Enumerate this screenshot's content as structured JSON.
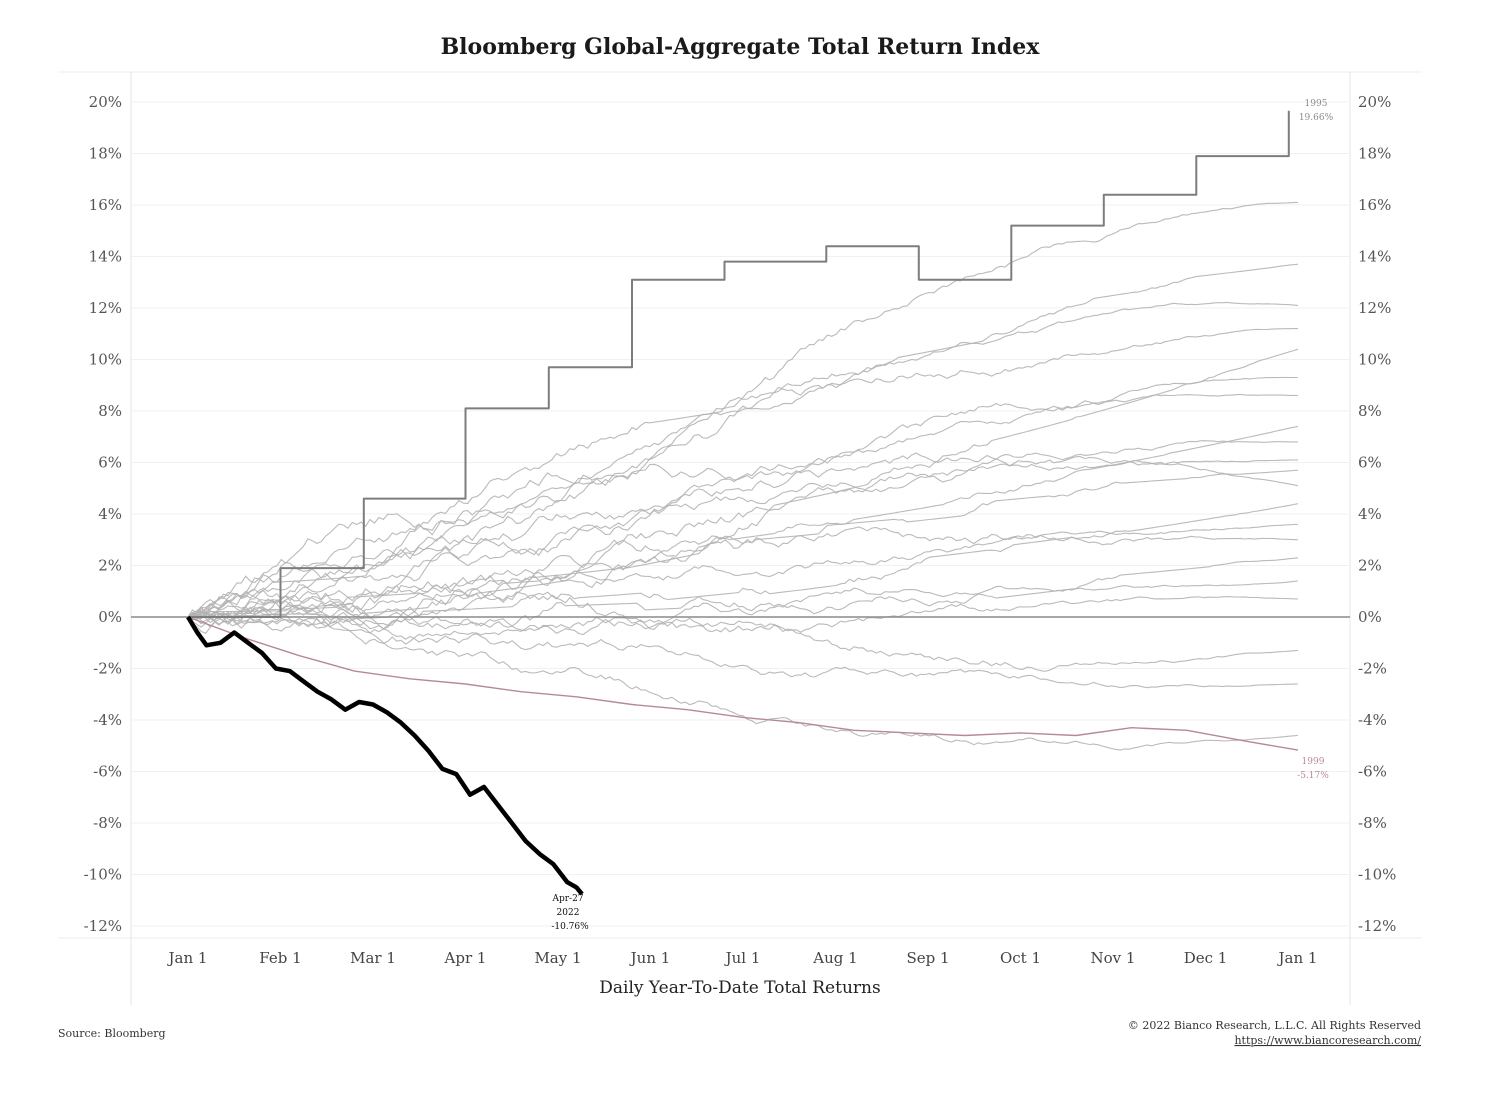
{
  "chart_data": {
    "type": "line",
    "title": "Bloomberg Global-Aggregate Total Return Index",
    "xlabel": "Daily Year-To-Date Total Returns",
    "ylabel": "",
    "ylim": [
      -12,
      20
    ],
    "y_ticks": [
      "20%",
      "18%",
      "16%",
      "14%",
      "12%",
      "10%",
      "8%",
      "6%",
      "4%",
      "2%",
      "0%",
      "-2%",
      "-4%",
      "-6%",
      "-8%",
      "-10%",
      "-12%"
    ],
    "x_ticks": [
      "Jan 1",
      "Feb 1",
      "Mar 1",
      "Apr 1",
      "May 1",
      "Jun 1",
      "Jul 1",
      "Aug 1",
      "Sep 1",
      "Oct 1",
      "Nov 1",
      "Dec 1",
      "Jan 1"
    ],
    "grid": true,
    "source": "Source: Bloomberg",
    "copyright": "© 2022 Bianco Research, L.L.C. All Rights Reserved",
    "url": "https://www.biancoresearch.com/",
    "highlight_series": {
      "name": "2022",
      "color": "#000000",
      "points": [
        [
          0,
          0
        ],
        [
          0.1,
          -0.6
        ],
        [
          0.2,
          -1.1
        ],
        [
          0.35,
          -1.0
        ],
        [
          0.5,
          -0.6
        ],
        [
          0.65,
          -1.0
        ],
        [
          0.8,
          -1.4
        ],
        [
          0.95,
          -2.0
        ],
        [
          1.1,
          -2.1
        ],
        [
          1.25,
          -2.5
        ],
        [
          1.4,
          -2.9
        ],
        [
          1.55,
          -3.2
        ],
        [
          1.7,
          -3.6
        ],
        [
          1.85,
          -3.3
        ],
        [
          2.0,
          -3.4
        ],
        [
          2.15,
          -3.7
        ],
        [
          2.3,
          -4.1
        ],
        [
          2.45,
          -4.6
        ],
        [
          2.6,
          -5.2
        ],
        [
          2.75,
          -5.9
        ],
        [
          2.9,
          -6.1
        ],
        [
          3.05,
          -6.9
        ],
        [
          3.2,
          -6.6
        ],
        [
          3.35,
          -7.3
        ],
        [
          3.5,
          -8.0
        ],
        [
          3.65,
          -8.7
        ],
        [
          3.8,
          -9.2
        ],
        [
          3.95,
          -9.6
        ],
        [
          4.1,
          -10.3
        ],
        [
          4.2,
          -10.5
        ],
        [
          4.26,
          -10.76
        ]
      ]
    },
    "step_series": {
      "name": "1995",
      "color": "#7d7d7d",
      "points": [
        [
          0,
          0
        ],
        [
          1.0,
          0
        ],
        [
          1.0,
          1.9
        ],
        [
          1.9,
          1.9
        ],
        [
          1.9,
          4.6
        ],
        [
          3.0,
          4.6
        ],
        [
          3.0,
          8.1
        ],
        [
          3.9,
          8.1
        ],
        [
          3.9,
          9.7
        ],
        [
          4.8,
          9.7
        ],
        [
          4.8,
          13.1
        ],
        [
          5.8,
          13.1
        ],
        [
          5.8,
          13.8
        ],
        [
          6.9,
          13.8
        ],
        [
          6.9,
          14.4
        ],
        [
          7.9,
          14.4
        ],
        [
          7.9,
          13.1
        ],
        [
          8.9,
          13.1
        ],
        [
          8.9,
          15.2
        ],
        [
          9.9,
          15.2
        ],
        [
          9.9,
          16.4
        ],
        [
          10.9,
          16.4
        ],
        [
          10.9,
          17.9
        ],
        [
          11.9,
          17.9
        ],
        [
          11.9,
          19.66
        ]
      ]
    },
    "low_series": {
      "name": "1999",
      "color": "#b58a97",
      "points": [
        [
          0,
          0
        ],
        [
          0.6,
          -0.8
        ],
        [
          1.2,
          -1.5
        ],
        [
          1.8,
          -2.1
        ],
        [
          2.4,
          -2.4
        ],
        [
          3.0,
          -2.6
        ],
        [
          3.6,
          -2.9
        ],
        [
          4.2,
          -3.1
        ],
        [
          4.8,
          -3.4
        ],
        [
          5.4,
          -3.6
        ],
        [
          6.0,
          -3.9
        ],
        [
          6.6,
          -4.1
        ],
        [
          7.2,
          -4.4
        ],
        [
          7.8,
          -4.5
        ],
        [
          8.4,
          -4.6
        ],
        [
          9.0,
          -4.5
        ],
        [
          9.6,
          -4.6
        ],
        [
          10.2,
          -4.3
        ],
        [
          10.8,
          -4.4
        ],
        [
          11.4,
          -4.8
        ],
        [
          12.0,
          -5.17
        ]
      ]
    },
    "other_years_color": "#b3b3b3",
    "annotations": {
      "max_year": "1995",
      "max_value": "19.66%",
      "min_year": "1999",
      "min_value": "-5.17%",
      "current_date": "Apr-27",
      "current_year": "2022",
      "current_value": "-10.76%"
    }
  }
}
